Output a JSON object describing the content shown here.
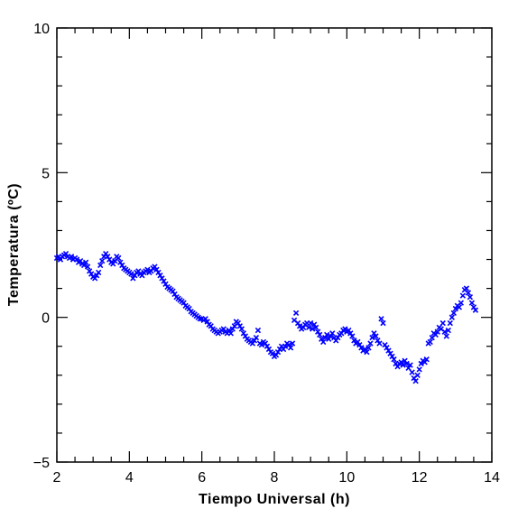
{
  "chart_data": {
    "type": "scatter",
    "title": "",
    "xlabel": "Tiempo Universal (h)",
    "ylabel": "Temperatura (ºC)",
    "xlim": [
      2,
      14
    ],
    "ylim": [
      -5,
      10
    ],
    "x_ticks": [
      "2",
      "4",
      "6",
      "8",
      "10",
      "12",
      "14"
    ],
    "y_ticks": [
      "−5",
      "0",
      "5",
      "10"
    ],
    "grid": false,
    "marker": "x",
    "series": [
      {
        "color": "#0000ff",
        "points": [
          [
            2.0,
            2.05
          ],
          [
            2.05,
            2.1
          ],
          [
            2.1,
            2.0
          ],
          [
            2.15,
            2.1
          ],
          [
            2.2,
            2.15
          ],
          [
            2.25,
            2.2
          ],
          [
            2.3,
            2.1
          ],
          [
            2.35,
            2.05
          ],
          [
            2.4,
            2.1
          ],
          [
            2.45,
            2.0
          ],
          [
            2.5,
            2.05
          ],
          [
            2.55,
            2.0
          ],
          [
            2.6,
            1.9
          ],
          [
            2.65,
            1.95
          ],
          [
            2.7,
            1.85
          ],
          [
            2.75,
            1.8
          ],
          [
            2.8,
            1.9
          ],
          [
            2.85,
            1.75
          ],
          [
            2.9,
            1.6
          ],
          [
            2.95,
            1.5
          ],
          [
            3.0,
            1.4
          ],
          [
            3.05,
            1.35
          ],
          [
            3.1,
            1.45
          ],
          [
            3.15,
            1.55
          ],
          [
            3.2,
            1.8
          ],
          [
            3.25,
            1.95
          ],
          [
            3.3,
            2.1
          ],
          [
            3.35,
            2.2
          ],
          [
            3.4,
            2.1
          ],
          [
            3.45,
            2.0
          ],
          [
            3.5,
            1.9
          ],
          [
            3.55,
            1.85
          ],
          [
            3.6,
            1.95
          ],
          [
            3.65,
            2.1
          ],
          [
            3.7,
            2.05
          ],
          [
            3.75,
            1.9
          ],
          [
            3.8,
            1.8
          ],
          [
            3.85,
            1.7
          ],
          [
            3.9,
            1.65
          ],
          [
            3.95,
            1.6
          ],
          [
            4.0,
            1.55
          ],
          [
            4.05,
            1.5
          ],
          [
            4.1,
            1.35
          ],
          [
            4.15,
            1.45
          ],
          [
            4.2,
            1.55
          ],
          [
            4.25,
            1.6
          ],
          [
            4.3,
            1.5
          ],
          [
            4.35,
            1.45
          ],
          [
            4.4,
            1.55
          ],
          [
            4.45,
            1.6
          ],
          [
            4.5,
            1.65
          ],
          [
            4.55,
            1.55
          ],
          [
            4.6,
            1.6
          ],
          [
            4.65,
            1.7
          ],
          [
            4.7,
            1.75
          ],
          [
            4.75,
            1.65
          ],
          [
            4.8,
            1.55
          ],
          [
            4.85,
            1.45
          ],
          [
            4.9,
            1.35
          ],
          [
            4.95,
            1.25
          ],
          [
            5.0,
            1.15
          ],
          [
            5.05,
            1.05
          ],
          [
            5.1,
            1.0
          ],
          [
            5.15,
            0.95
          ],
          [
            5.2,
            0.9
          ],
          [
            5.25,
            0.8
          ],
          [
            5.3,
            0.7
          ],
          [
            5.35,
            0.65
          ],
          [
            5.4,
            0.6
          ],
          [
            5.45,
            0.55
          ],
          [
            5.5,
            0.5
          ],
          [
            5.55,
            0.4
          ],
          [
            5.6,
            0.35
          ],
          [
            5.65,
            0.3
          ],
          [
            5.7,
            0.2
          ],
          [
            5.75,
            0.15
          ],
          [
            5.8,
            0.1
          ],
          [
            5.85,
            0.05
          ],
          [
            5.9,
            0.0
          ],
          [
            5.95,
            -0.05
          ],
          [
            6.0,
            -0.05
          ],
          [
            6.05,
            -0.1
          ],
          [
            6.1,
            -0.05
          ],
          [
            6.15,
            -0.15
          ],
          [
            6.2,
            -0.25
          ],
          [
            6.25,
            -0.3
          ],
          [
            6.3,
            -0.4
          ],
          [
            6.35,
            -0.45
          ],
          [
            6.4,
            -0.5
          ],
          [
            6.45,
            -0.55
          ],
          [
            6.5,
            -0.5
          ],
          [
            6.55,
            -0.45
          ],
          [
            6.6,
            -0.4
          ],
          [
            6.65,
            -0.5
          ],
          [
            6.7,
            -0.55
          ],
          [
            6.75,
            -0.45
          ],
          [
            6.8,
            -0.55
          ],
          [
            6.85,
            -0.4
          ],
          [
            6.9,
            -0.3
          ],
          [
            6.95,
            -0.15
          ],
          [
            7.0,
            -0.2
          ],
          [
            7.05,
            -0.3
          ],
          [
            7.1,
            -0.4
          ],
          [
            7.15,
            -0.55
          ],
          [
            7.2,
            -0.65
          ],
          [
            7.25,
            -0.75
          ],
          [
            7.3,
            -0.8
          ],
          [
            7.35,
            -0.85
          ],
          [
            7.4,
            -0.9
          ],
          [
            7.45,
            -0.8
          ],
          [
            7.5,
            -0.7
          ],
          [
            7.55,
            -0.45
          ],
          [
            7.6,
            -0.9
          ],
          [
            7.65,
            -0.95
          ],
          [
            7.7,
            -0.85
          ],
          [
            7.75,
            -0.9
          ],
          [
            7.8,
            -1.0
          ],
          [
            7.85,
            -1.1
          ],
          [
            7.9,
            -1.2
          ],
          [
            7.95,
            -1.25
          ],
          [
            8.0,
            -1.35
          ],
          [
            8.05,
            -1.3
          ],
          [
            8.1,
            -1.2
          ],
          [
            8.15,
            -1.1
          ],
          [
            8.2,
            -1.0
          ],
          [
            8.25,
            -1.1
          ],
          [
            8.3,
            -1.0
          ],
          [
            8.35,
            -0.9
          ],
          [
            8.4,
            -0.95
          ],
          [
            8.45,
            -1.05
          ],
          [
            8.5,
            -0.9
          ],
          [
            8.55,
            -0.1
          ],
          [
            8.6,
            0.15
          ],
          [
            8.65,
            -0.2
          ],
          [
            8.7,
            -0.3
          ],
          [
            8.75,
            -0.4
          ],
          [
            8.8,
            -0.35
          ],
          [
            8.85,
            -0.25
          ],
          [
            8.9,
            -0.2
          ],
          [
            8.95,
            -0.35
          ],
          [
            9.0,
            -0.2
          ],
          [
            9.05,
            -0.4
          ],
          [
            9.1,
            -0.25
          ],
          [
            9.15,
            -0.35
          ],
          [
            9.2,
            -0.5
          ],
          [
            9.25,
            -0.6
          ],
          [
            9.3,
            -0.75
          ],
          [
            9.35,
            -0.85
          ],
          [
            9.4,
            -0.7
          ],
          [
            9.45,
            -0.6
          ],
          [
            9.5,
            -0.75
          ],
          [
            9.55,
            -0.65
          ],
          [
            9.6,
            -0.55
          ],
          [
            9.65,
            -0.7
          ],
          [
            9.7,
            -0.8
          ],
          [
            9.75,
            -0.7
          ],
          [
            9.8,
            -0.6
          ],
          [
            9.85,
            -0.55
          ],
          [
            9.9,
            -0.45
          ],
          [
            9.95,
            -0.4
          ],
          [
            10.0,
            -0.5
          ],
          [
            10.05,
            -0.45
          ],
          [
            10.1,
            -0.55
          ],
          [
            10.15,
            -0.65
          ],
          [
            10.2,
            -0.8
          ],
          [
            10.25,
            -0.9
          ],
          [
            10.3,
            -0.85
          ],
          [
            10.35,
            -0.95
          ],
          [
            10.4,
            -1.05
          ],
          [
            10.45,
            -1.15
          ],
          [
            10.5,
            -1.1
          ],
          [
            10.55,
            -1.2
          ],
          [
            10.6,
            -1.05
          ],
          [
            10.65,
            -0.9
          ],
          [
            10.7,
            -0.7
          ],
          [
            10.75,
            -0.55
          ],
          [
            10.8,
            -0.65
          ],
          [
            10.85,
            -0.8
          ],
          [
            10.9,
            -0.9
          ],
          [
            10.95,
            -0.05
          ],
          [
            11.0,
            -0.2
          ],
          [
            11.05,
            -0.95
          ],
          [
            11.1,
            -1.05
          ],
          [
            11.15,
            -1.15
          ],
          [
            11.2,
            -1.25
          ],
          [
            11.25,
            -1.35
          ],
          [
            11.3,
            -1.45
          ],
          [
            11.35,
            -1.6
          ],
          [
            11.4,
            -1.7
          ],
          [
            11.45,
            -1.6
          ],
          [
            11.5,
            -1.55
          ],
          [
            11.55,
            -1.65
          ],
          [
            11.6,
            -1.5
          ],
          [
            11.65,
            -1.6
          ],
          [
            11.7,
            -1.75
          ],
          [
            11.75,
            -1.65
          ],
          [
            11.8,
            -1.9
          ],
          [
            11.85,
            -2.1
          ],
          [
            11.9,
            -2.2
          ],
          [
            11.95,
            -2.0
          ],
          [
            12.0,
            -1.8
          ],
          [
            12.05,
            -1.6
          ],
          [
            12.1,
            -1.5
          ],
          [
            12.15,
            -1.55
          ],
          [
            12.2,
            -1.45
          ],
          [
            12.25,
            -0.9
          ],
          [
            12.3,
            -0.85
          ],
          [
            12.35,
            -0.7
          ],
          [
            12.4,
            -0.55
          ],
          [
            12.45,
            -0.6
          ],
          [
            12.5,
            -0.5
          ],
          [
            12.55,
            -0.35
          ],
          [
            12.6,
            -0.4
          ],
          [
            12.65,
            -0.2
          ],
          [
            12.7,
            -0.5
          ],
          [
            12.75,
            -0.65
          ],
          [
            12.8,
            -0.45
          ],
          [
            12.85,
            -0.2
          ],
          [
            12.9,
            0.0
          ],
          [
            12.95,
            0.15
          ],
          [
            13.0,
            0.3
          ],
          [
            13.05,
            0.4
          ],
          [
            13.1,
            0.35
          ],
          [
            13.15,
            0.5
          ],
          [
            13.2,
            0.75
          ],
          [
            13.25,
            0.95
          ],
          [
            13.3,
            1.0
          ],
          [
            13.35,
            0.85
          ],
          [
            13.4,
            0.7
          ],
          [
            13.45,
            0.5
          ],
          [
            13.5,
            0.35
          ],
          [
            13.55,
            0.25
          ]
        ]
      }
    ]
  }
}
